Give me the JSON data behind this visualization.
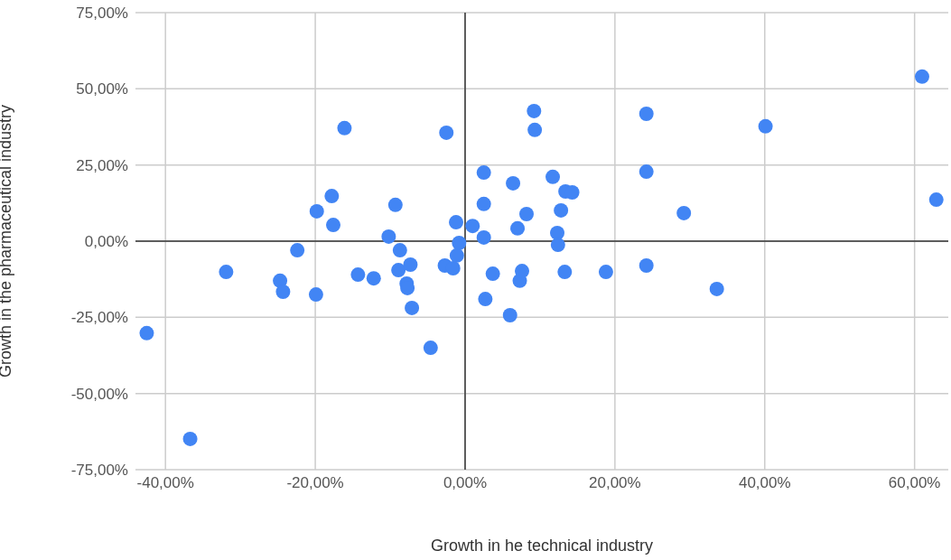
{
  "chart_data": {
    "type": "scatter",
    "xlabel": "Growth in he technical industry",
    "ylabel": "Growth in the pharmaceutical industry",
    "xlim": [
      -44,
      64.5
    ],
    "ylim": [
      -75,
      75
    ],
    "xticks": [
      {
        "value": -40,
        "label": "-40,00%"
      },
      {
        "value": -20,
        "label": "-20,00%"
      },
      {
        "value": 0,
        "label": "0,00%"
      },
      {
        "value": 20,
        "label": "20,00%"
      },
      {
        "value": 40,
        "label": "40,00%"
      },
      {
        "value": 60,
        "label": "60,00%"
      }
    ],
    "yticks": [
      {
        "value": -75,
        "label": "-75,00%"
      },
      {
        "value": -50,
        "label": "-50,00%"
      },
      {
        "value": -25,
        "label": "-25,00%"
      },
      {
        "value": 0,
        "label": "0,00%"
      },
      {
        "value": 25,
        "label": "25,00%"
      },
      {
        "value": 50,
        "label": "50,00%"
      },
      {
        "value": 75,
        "label": "75,00%"
      }
    ],
    "grid": true,
    "legend": false,
    "marker": "circle",
    "series": [
      {
        "color": "#4285f4",
        "x": [
          -42.5,
          -36.7,
          -31.9,
          -24.7,
          -24.3,
          -19.9,
          -19.8,
          -17.8,
          -17.6,
          -16.1,
          -22.4,
          -14.3,
          -12.2,
          -10.2,
          -9.3,
          -8.7,
          -8.9,
          -7.8,
          -7.7,
          -7.3,
          -7.1,
          -4.6,
          -2.5,
          -2.7,
          -1.6,
          -1.2,
          -1.1,
          -0.8,
          1.0,
          2.5,
          2.5,
          2.5,
          2.7,
          3.7,
          6.0,
          6.4,
          7.0,
          7.3,
          7.6,
          8.2,
          9.2,
          9.3,
          11.7,
          12.3,
          12.4,
          12.8,
          13.4,
          14.3,
          13.3,
          18.8,
          24.2,
          24.2,
          24.2,
          29.2,
          33.6,
          40.1,
          61.0,
          62.9
        ],
        "values": [
          -30.2,
          -64.9,
          -10.1,
          -13.0,
          -16.6,
          -17.5,
          9.8,
          14.8,
          5.3,
          37.1,
          -3.0,
          -11.0,
          -12.2,
          1.5,
          11.9,
          -3.0,
          -9.5,
          -13.9,
          -15.4,
          -7.7,
          -21.9,
          -35.0,
          35.6,
          -8.0,
          -8.9,
          6.2,
          -4.7,
          -0.6,
          5.0,
          22.5,
          12.2,
          1.2,
          -19.0,
          -10.7,
          -24.3,
          19.0,
          4.2,
          -13.0,
          -9.8,
          8.9,
          42.7,
          36.5,
          21.1,
          2.7,
          -1.2,
          10.1,
          16.3,
          16.0,
          -10.1,
          -10.1,
          41.8,
          22.8,
          -8.0,
          9.2,
          -15.7,
          37.7,
          54.0,
          13.6
        ]
      }
    ]
  }
}
